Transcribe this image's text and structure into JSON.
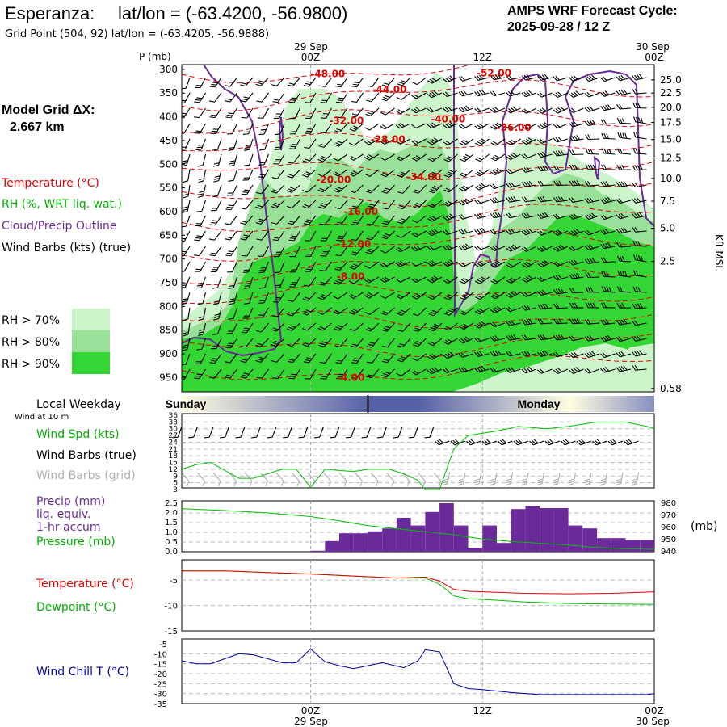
{
  "header": {
    "station": "Esperanza:",
    "latlon": "lat/lon = (-63.4200, -56.9800)",
    "grid_point": "Grid Point (504, 92) lat/lon = (-63.4205, -56.9888)",
    "cycle_label": "AMPS WRF Forecast Cycle:",
    "cycle_value": "2025-09-28 / 12  Z"
  },
  "time_axis": {
    "top_dates": [
      "29 Sep",
      "30 Sep"
    ],
    "ticks": [
      "00Z",
      "12Z",
      "00Z"
    ],
    "tick_hours": [
      0,
      12,
      24
    ],
    "start_hour": -9,
    "end_hour": 24,
    "bottom_dates": [
      "29 Sep",
      "30 Sep"
    ]
  },
  "weekday_bar": {
    "label": "Local Weekday",
    "days": [
      "Sunday",
      "Monday"
    ],
    "midnight_hour": 4
  },
  "left_legend": {
    "model_grid_label": "Model Grid ΔX:",
    "model_grid_value": "2.667 km",
    "temperature": "Temperature (°C)",
    "rh": "RH (%, WRT liq. wat.)",
    "cloud": "Cloud/Precip Outline",
    "wind_barbs": "Wind Barbs (kts) (true)",
    "rh70": "RH > 70%",
    "rh80": "RH > 80%",
    "rh90": "RH > 90%",
    "wind_at_10m": "Wind at 10 m"
  },
  "colors": {
    "rh70": "#ccf5cc",
    "rh80": "#99e099",
    "rh90": "#33d633",
    "temperature": "#e00000",
    "dewpoint": "#00c000",
    "cloud": "#6a2a9a",
    "precip": "#6a2a9a",
    "windchill": "#0000aa",
    "gray_barb": "#b0b0b0",
    "day_bar_dark": "#5560a8",
    "day_bar_light": "#fffde0"
  },
  "chart_data": [
    {
      "id": "cross_section",
      "type": "heatmap",
      "y_axis_label": "P (mb)",
      "pressure_ticks": [
        300,
        350,
        400,
        450,
        500,
        550,
        600,
        650,
        700,
        750,
        800,
        850,
        900,
        950
      ],
      "ylim": [
        290,
        980
      ],
      "height_axis_label": "Kft MSL",
      "height_ticks": [
        "25.0",
        "22.5",
        "20.0",
        "17.5",
        "15.0",
        "12.5",
        "10.0",
        "7.5",
        "5.0",
        "2.5",
        "0.58"
      ],
      "height_tick_pressures": [
        322,
        350,
        380,
        412,
        448,
        487,
        530,
        578,
        635,
        705,
        973
      ],
      "temperature_labels": [
        {
          "text": "-48.00",
          "hour": 1.2,
          "p": 310
        },
        {
          "text": "-52.00",
          "hour": 12.8,
          "p": 308
        },
        {
          "text": "-44.00",
          "hour": 5.5,
          "p": 343
        },
        {
          "text": "-32.00",
          "hour": 2.5,
          "p": 408
        },
        {
          "text": "-40.00",
          "hour": 9.6,
          "p": 405
        },
        {
          "text": "-36.00",
          "hour": 14.2,
          "p": 423
        },
        {
          "text": "-28.00",
          "hour": 5.4,
          "p": 448
        },
        {
          "text": "-34.00",
          "hour": 7.9,
          "p": 527
        },
        {
          "text": "-20.00",
          "hour": 1.6,
          "p": 533
        },
        {
          "text": "-16.00",
          "hour": 3.5,
          "p": 600
        },
        {
          "text": "-12.00",
          "hour": 3.0,
          "p": 668
        },
        {
          "text": "-8.00",
          "hour": 2.8,
          "p": 737
        },
        {
          "text": "-4.00",
          "hour": 2.8,
          "p": 950
        }
      ]
    },
    {
      "id": "wind",
      "type": "line",
      "ylabel_series": [
        "Wind Spd (kts)",
        "Wind Barbs (true)",
        "Wind Barbs (grid)"
      ],
      "yticks": [
        3,
        6,
        9,
        12,
        15,
        18,
        21,
        24,
        27,
        30,
        33,
        36
      ],
      "ylim": [
        3,
        36
      ],
      "x": [
        -9,
        -8,
        -7,
        -5,
        -4,
        -2,
        -1,
        0,
        1,
        3,
        4,
        5.5,
        6.5,
        7.5,
        8,
        9,
        10,
        11,
        13,
        14.5,
        16.5,
        18,
        20,
        22,
        23.5,
        24
      ],
      "speed": [
        12,
        14,
        15,
        8,
        8,
        12,
        12,
        4,
        12,
        11,
        12,
        12,
        10,
        7,
        3,
        3,
        21,
        27,
        29,
        31,
        30,
        31,
        33,
        33,
        31,
        30
      ]
    },
    {
      "id": "precip_pressure",
      "type": "bar",
      "series_labels": [
        "Precip (mm)",
        "liq. equiv.",
        "1-hr accum",
        "Pressure (mb)"
      ],
      "left_ticks": [
        "2.5",
        "2.0",
        "1.5",
        "1.0",
        "0.5",
        "0.0"
      ],
      "right_ticks": [
        "980",
        "970",
        "960",
        "950",
        "940"
      ],
      "right_unit": "(mb)",
      "precip_ylim": [
        0,
        2.5
      ],
      "pressure_ylim": [
        940,
        980
      ],
      "precip_hours": [
        -9,
        -8,
        -7,
        -6,
        -5,
        -4,
        -3,
        -2,
        -1,
        0,
        1,
        2,
        3,
        4,
        5,
        6,
        7,
        8,
        9,
        10,
        11,
        12,
        13,
        14,
        15,
        16,
        17,
        18,
        19,
        20,
        21,
        22,
        23
      ],
      "precip_values": [
        0,
        0,
        0,
        0,
        0,
        0,
        0,
        0,
        0,
        0.05,
        0.55,
        0.95,
        0.95,
        1.05,
        1.2,
        1.75,
        1.35,
        2.05,
        2.5,
        1.35,
        0.2,
        1.35,
        0.45,
        2.2,
        2.35,
        2.25,
        2.25,
        1.35,
        1.2,
        0.7,
        0.7,
        0.6,
        0.6
      ],
      "pressure_x": [
        -9,
        -6,
        -3,
        0,
        2,
        4,
        6,
        8,
        10,
        12,
        14,
        16,
        18,
        20,
        22,
        24
      ],
      "pressure_values": [
        975.5,
        974,
        972,
        969,
        965.5,
        961.5,
        959,
        956.5,
        954,
        950.5,
        948.5,
        947,
        945.5,
        943.5,
        942.5,
        942
      ]
    },
    {
      "id": "temp_dewpoint",
      "type": "line",
      "series_labels": [
        "Temperature (°C)",
        "Dewpoint (°C)"
      ],
      "yticks": [
        "-5",
        "-10",
        "-15"
      ],
      "ytick_values": [
        -5,
        -10,
        -15
      ],
      "ylim": [
        -15,
        -1
      ],
      "x": [
        -9,
        -6,
        -3,
        0,
        3,
        6,
        8,
        9,
        10,
        11,
        12,
        15,
        18,
        21,
        24
      ],
      "temperature": [
        -3.2,
        -3.2,
        -3.5,
        -3.8,
        -4.2,
        -4.6,
        -4.4,
        -5.2,
        -6.8,
        -7.2,
        -7.3,
        -7.6,
        -7.7,
        -7.6,
        -7.3
      ],
      "dewpoint": [
        -3.2,
        -3.2,
        -3.5,
        -3.8,
        -4.2,
        -4.6,
        -4.6,
        -5.8,
        -8.1,
        -8.7,
        -8.8,
        -9.3,
        -9.6,
        -9.7,
        -9.8
      ]
    },
    {
      "id": "windchill",
      "type": "line",
      "series_labels": [
        "Wind Chill T (°C)"
      ],
      "yticks": [
        "-5",
        "-10",
        "-15",
        "-20",
        "-25",
        "-30",
        "-35"
      ],
      "ytick_values": [
        -5,
        -10,
        -15,
        -20,
        -25,
        -30,
        -35
      ],
      "ylim": [
        -35,
        -5
      ],
      "x": [
        -9,
        -8,
        -7,
        -5,
        -4,
        -2,
        -1,
        0,
        1,
        2,
        3,
        5,
        6.5,
        7.5,
        8,
        9,
        10,
        11,
        12,
        14,
        16,
        18,
        20,
        22,
        23.5,
        24
      ],
      "values": [
        -13.5,
        -15,
        -15,
        -10,
        -10.5,
        -14.5,
        -14.5,
        -7.5,
        -14,
        -16,
        -17.5,
        -14.5,
        -17,
        -13.5,
        -8,
        -9,
        -25,
        -27.5,
        -28,
        -29.5,
        -30.5,
        -30.5,
        -30.5,
        -30.5,
        -30.5,
        -30
      ]
    }
  ]
}
